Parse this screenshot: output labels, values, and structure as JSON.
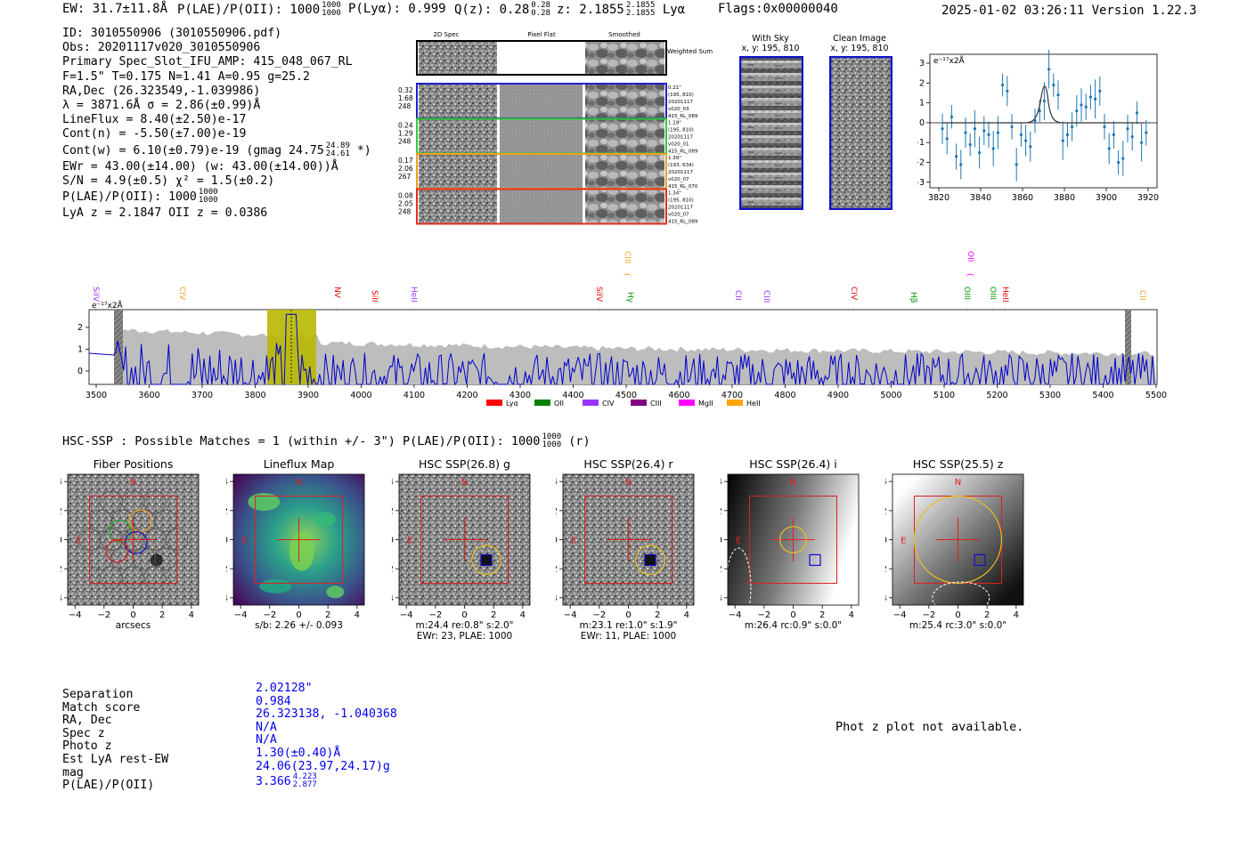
{
  "header": {
    "ew": "EW: 31.7±11.8Å",
    "plae_label": "P(LAE)/P(OII): 1000",
    "plae_hi": "1000",
    "plae_lo": "1000",
    "plya": "P(Lyα): 0.999",
    "qz": "Q(z): 0.28",
    "qz_hi": "0.28",
    "qz_lo": "0.28",
    "z_label": "z: 2.1855",
    "z_hi": "2.1855",
    "z_lo": "2.1855",
    "z_line": "Lyα",
    "flags": "Flags:0x00000040",
    "timestamp": "2025-01-02 03:26:11  Version 1.22.3"
  },
  "info": {
    "lines": [
      "ID: 3010550906 (3010550906.pdf)",
      "Obs: 20201117v020_3010550906",
      "Primary Spec_Slot_IFU_AMP: 415_048_067_RL",
      "F=1.5\"  T=0.175  N=1.41  A=0.95  g=25.2",
      "RA,Dec (26.323549,-1.039986)",
      "λ = 3871.6Å   σ = 2.86(±0.99)Å",
      "LineFlux = 8.40(±2.50)e-17",
      "Cont(n) = -5.50(±7.00)e-19"
    ],
    "contw": "Cont(w) = 6.10(±0.79)e-19 (gmag 24.75",
    "contw_hi": "24.89",
    "contw_lo": "24.61",
    "contw_end": "*)",
    "ewr": "EWr = 43.00(±14.00) (w: 43.00(±14.00))Å",
    "sn": "S/N = 4.9(±0.5)  χ² = 1.5(±0.2)",
    "plae": "P(LAE)/P(OII): 1000",
    "plae_hi": "1000",
    "plae_lo": "1000",
    "lya": "LyA z = 2.1847   OII z = 0.0386"
  },
  "cutouts": {
    "col_labels": [
      "2D Spec",
      "Pixel Flat",
      "Smoothed"
    ],
    "weighted": "Weighted Sum",
    "rows": [
      {
        "left": [
          "0.32",
          "1.68",
          "248"
        ],
        "right": [
          "0.21\"",
          "(195, 810)",
          "20201117",
          "v020_03",
          "415_RL_089"
        ],
        "color": "#2020cc"
      },
      {
        "left": [
          "0.24",
          "1.29",
          "248"
        ],
        "right": [
          "1.19\"",
          "(195, 810)",
          "20201117",
          "v020_01",
          "415_RL_089"
        ],
        "color": "#33cc33"
      },
      {
        "left": [
          "0.17",
          "2.06",
          "267"
        ],
        "right": [
          "1.39\"",
          "(193, 634)",
          "20201117",
          "v020_07",
          "415_RL_070"
        ],
        "color": "#f0a020"
      },
      {
        "left": [
          "0.08",
          "2.05",
          "248"
        ],
        "right": [
          "1.34\"",
          "(195, 810)",
          "20201117",
          "v020_07",
          "415_RL_089"
        ],
        "color": "#e03020"
      }
    ],
    "with_sky": "With Sky",
    "with_sky_xy": "x, y: 195, 810",
    "clean": "Clean Image",
    "clean_xy": "x, y: 195, 810"
  },
  "fit_plot": {
    "ylabel": "e⁻¹⁷x2Å",
    "xticks": [
      "3820",
      "3840",
      "3860",
      "3880",
      "3900",
      "3920"
    ],
    "yticks": [
      "3",
      "2",
      "1",
      "0",
      "−1",
      "−2",
      "−3"
    ]
  },
  "spectrum": {
    "ylabel": "e⁻¹⁷x2Å",
    "xticks": [
      "3500",
      "3600",
      "3700",
      "3800",
      "3900",
      "4000",
      "4100",
      "4200",
      "4300",
      "4400",
      "4500",
      "4600",
      "4700",
      "4800",
      "4900",
      "5000",
      "5100",
      "5200",
      "5300",
      "5400",
      "5500"
    ],
    "yticks": [
      "2",
      "1",
      "0"
    ],
    "lines": [
      {
        "label": "SiIV",
        "color": "#9933ff"
      },
      {
        "label": "CIV",
        "color": "#f0a020"
      },
      {
        "label": "NV",
        "color": "#ee0000"
      },
      {
        "label": "SiII",
        "color": "#ee0000"
      },
      {
        "label": "HeII",
        "color": "#9933ff"
      },
      {
        "label": "SiIV",
        "color": "#ee0000"
      },
      {
        "label": "CIII",
        "color": "#f0a020"
      },
      {
        "label": "Hγ",
        "color": "#009900"
      },
      {
        "label": "CII",
        "color": "#9933ff"
      },
      {
        "label": "CIII",
        "color": "#9933ff"
      },
      {
        "label": "CIV",
        "color": "#ee0000"
      },
      {
        "label": "Hβ",
        "color": "#009900"
      },
      {
        "label": "OIII",
        "color": "#009900"
      },
      {
        "label": "OII",
        "color": "#ff00ff"
      },
      {
        "label": "OIII",
        "color": "#009900"
      },
      {
        "label": "HeII",
        "color": "#ee0000"
      },
      {
        "label": "CII",
        "color": "#f0a020"
      }
    ],
    "legend": [
      {
        "label": "Lyα",
        "color": "#ff0000"
      },
      {
        "label": "OII",
        "color": "#008000"
      },
      {
        "label": "CIV",
        "color": "#9933ff"
      },
      {
        "label": "CIII",
        "color": "#800080"
      },
      {
        "label": "MgII",
        "color": "#ff00ff"
      },
      {
        "label": "HeII",
        "color": "#ffa500"
      }
    ]
  },
  "hsc": {
    "summary": "HSC-SSP : Possible Matches = 1 (within +/- 3\")  P(LAE)/P(OII): 1000",
    "summary_hi": "1000",
    "summary_lo": "1000",
    "summary_end": "(r)",
    "ticks": [
      "−4",
      "−2",
      "0",
      "2",
      "4"
    ],
    "panels": [
      {
        "title": "Fiber Positions",
        "cap1": "arcsecs",
        "cap2": ""
      },
      {
        "title": "Lineflux Map",
        "cap1": "s/b: 2.26 +/- 0.093",
        "cap2": ""
      },
      {
        "title": "HSC SSP(26.8) g",
        "cap1": "m:24.4  re:0.8\"  s:2.0\"",
        "cap2": "EWr: 23, PLAE: 1000"
      },
      {
        "title": "HSC SSP(26.4) r",
        "cap1": "m:23.1  re:1.0\"  s:1.9\"",
        "cap2": "EWr: 11, PLAE: 1000"
      },
      {
        "title": "HSC SSP(26.4) i",
        "cap1": "m:26.4 rc:0.9\"  s:0.0\"",
        "cap2": ""
      },
      {
        "title": "HSC SSP(25.5) z",
        "cap1": "m:25.4 rc:3.0\"  s:0.0\"",
        "cap2": ""
      }
    ],
    "north": "N",
    "east": "E"
  },
  "match_table": {
    "labels": [
      "Separation",
      "Match score",
      "RA, Dec",
      "Spec z",
      "Photo z",
      "Est LyA rest-EW",
      "mag",
      "P(LAE)/P(OII)"
    ],
    "values": [
      "2.02128\"",
      "0.984",
      "26.323138, -1.040368",
      "N/A",
      "N/A",
      "1.30(±0.40)Å",
      "24.06(23.97,24.17)g",
      "3.366"
    ],
    "plae_hi": "4.223",
    "plae_lo": "2.877"
  },
  "photz_note": "Phot z plot not available."
}
